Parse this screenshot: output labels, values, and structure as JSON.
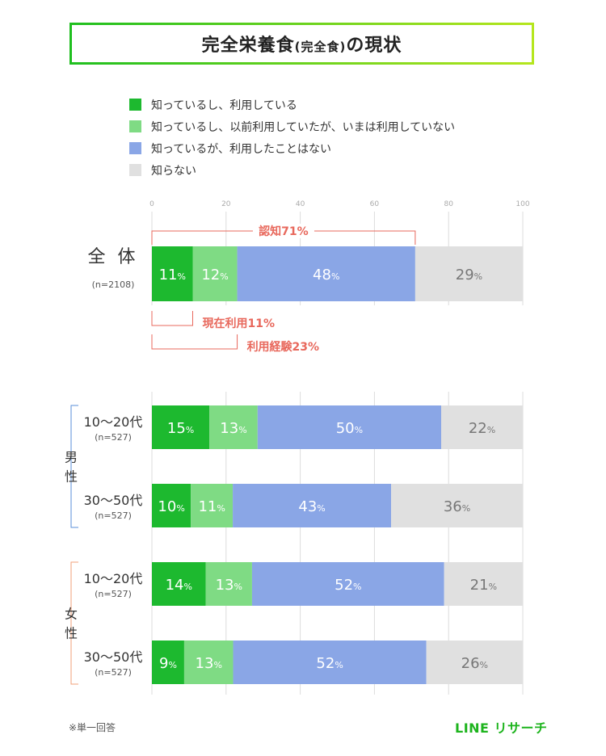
{
  "title": {
    "main": "完全栄養食",
    "paren": "(完全食)",
    "suffix": "の現状"
  },
  "legend": [
    {
      "label": "知っているし、利用している",
      "color": "#1db92f"
    },
    {
      "label": "知っているし、以前利用していたが、いまは利用していない",
      "color": "#7fdb84"
    },
    {
      "label": "知っているが、利用したことはない",
      "color": "#8aa6e6"
    },
    {
      "label": "知らない",
      "color": "#e0e0e0"
    }
  ],
  "chart_data": {
    "type": "bar",
    "orientation": "horizontal-stacked",
    "xlim": [
      0,
      100
    ],
    "x_ticks": [
      "0",
      "20",
      "40",
      "60",
      "80",
      "100"
    ],
    "unit": "%",
    "series": [
      {
        "name": "知っているし、利用している",
        "color": "#1db92f"
      },
      {
        "name": "知っているし、以前利用していたが、いまは利用していない",
        "color": "#7fdb84"
      },
      {
        "name": "知っているが、利用したことはない",
        "color": "#8aa6e6"
      },
      {
        "name": "知らない",
        "color": "#e0e0e0"
      }
    ],
    "rows": [
      {
        "label": "全 体",
        "n": "(n=2108)",
        "values": [
          11,
          12,
          48,
          29
        ],
        "ends": [
          11,
          23,
          71,
          100
        ]
      },
      {
        "label": "10〜20代",
        "n": "(n=527)",
        "values": [
          15,
          13,
          50,
          22
        ],
        "ends": [
          15.5,
          28.5,
          78,
          100
        ]
      },
      {
        "label": "30〜50代",
        "n": "(n=527)",
        "values": [
          10,
          11,
          43,
          36
        ],
        "ends": [
          10.5,
          21.8,
          64.5,
          100
        ]
      },
      {
        "label": "10〜20代",
        "n": "(n=527)",
        "values": [
          14,
          13,
          52,
          21
        ],
        "ends": [
          14.5,
          27,
          78.8,
          100
        ]
      },
      {
        "label": "30〜50代",
        "n": "(n=527)",
        "values": [
          9,
          13,
          52,
          26
        ],
        "ends": [
          8.7,
          21.9,
          74,
          100
        ]
      }
    ],
    "groups": [
      {
        "label": "男\n性",
        "rows": [
          1,
          2
        ],
        "color": "#5a8fd8"
      },
      {
        "label": "女\n性",
        "rows": [
          3,
          4
        ],
        "color": "#f2a07a"
      }
    ],
    "annotations": [
      {
        "text": "認知71%",
        "from": 0,
        "to": 71,
        "position": "above"
      },
      {
        "text": "現在利用11%",
        "from": 0,
        "to": 11,
        "position": "below"
      },
      {
        "text": "利用経験23%",
        "from": 0,
        "to": 23,
        "position": "below"
      }
    ],
    "annotation_color": "#e8685c",
    "grid": true
  },
  "footnote": "※単一回答",
  "brand": "LINE リサーチ"
}
